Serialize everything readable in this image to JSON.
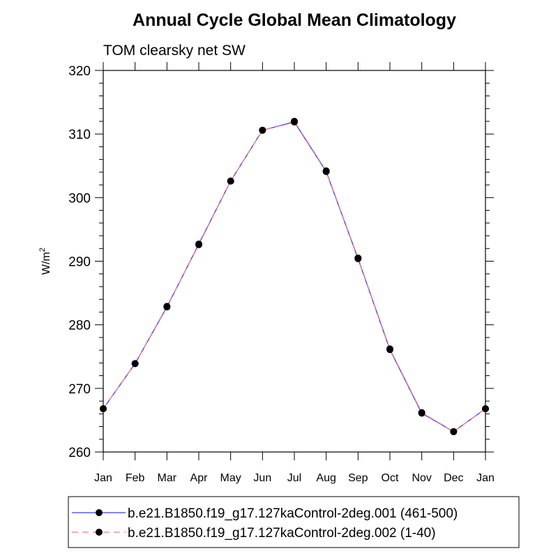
{
  "chart_data": {
    "type": "line",
    "title": "Annual Cycle Global Mean Climatology",
    "subtitle": "TOM clearsky net SW",
    "ylabel_base": "W/m",
    "ylabel_sup": "2",
    "xlabel": "",
    "categories": [
      "Jan",
      "Feb",
      "Mar",
      "Apr",
      "May",
      "Jun",
      "Jul",
      "Aug",
      "Sep",
      "Oct",
      "Nov",
      "Dec",
      "Jan"
    ],
    "ylim": [
      260,
      320
    ],
    "yticks": [
      260,
      270,
      280,
      290,
      300,
      310,
      320
    ],
    "grid": false,
    "legend_position": "bottom",
    "colors": {
      "series1": "#3a3aff",
      "series2": "#ff7a7a",
      "marker": "#000000"
    },
    "series": [
      {
        "name": "b.e21.B1850.f19_g17.127kaControl-2deg.001 (461-500)",
        "style": "solid",
        "values": [
          266.8,
          273.9,
          282.8,
          292.7,
          302.6,
          310.6,
          311.9,
          304.1,
          290.4,
          276.1,
          266.1,
          263.2,
          266.8
        ]
      },
      {
        "name": "b.e21.B1850.f19_g17.127kaControl-2deg.002 (1-40)",
        "style": "dashed",
        "values": [
          266.8,
          273.9,
          282.9,
          292.6,
          302.6,
          310.6,
          312.0,
          304.2,
          290.5,
          276.2,
          266.2,
          263.2,
          266.8
        ]
      }
    ]
  }
}
